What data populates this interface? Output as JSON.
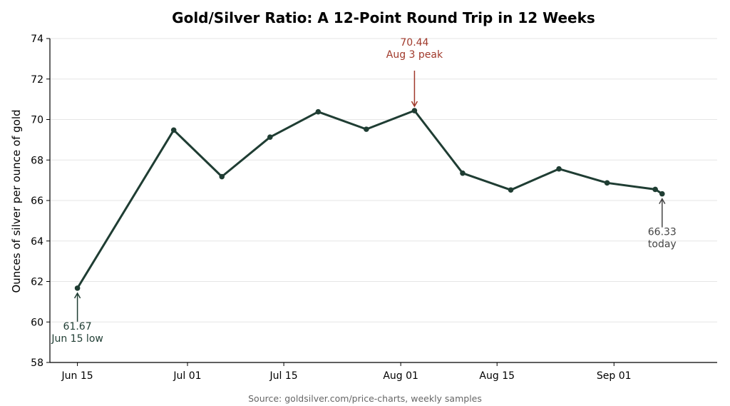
{
  "chart_data": {
    "type": "line",
    "title": "Gold/Silver Ratio: A 12-Point Round Trip in 12 Weeks",
    "xlabel": "",
    "ylabel": "Ounces of silver per ounce of gold",
    "source": "Source: goldsilver.com/price-charts, weekly samples",
    "ylim": [
      58,
      74
    ],
    "yticks": [
      58,
      60,
      62,
      64,
      66,
      68,
      70,
      72,
      74
    ],
    "xlim": [
      "2025-06-11",
      "2025-09-16"
    ],
    "xticks": [
      {
        "date": "2025-06-15",
        "label": "Jun 15"
      },
      {
        "date": "2025-07-01",
        "label": "Jul 01"
      },
      {
        "date": "2025-07-15",
        "label": "Jul 15"
      },
      {
        "date": "2025-08-01",
        "label": "Aug 01"
      },
      {
        "date": "2025-08-15",
        "label": "Aug 15"
      },
      {
        "date": "2025-09-01",
        "label": "Sep 01"
      }
    ],
    "grid": "horizontal",
    "line_color": "#1f3d33",
    "series": [
      {
        "name": "",
        "points": [
          {
            "x": "2025-06-15",
            "y": 61.67
          },
          {
            "x": "2025-06-29",
            "y": 69.48
          },
          {
            "x": "2025-07-06",
            "y": 67.18
          },
          {
            "x": "2025-07-13",
            "y": 69.13
          },
          {
            "x": "2025-07-20",
            "y": 70.38
          },
          {
            "x": "2025-07-27",
            "y": 69.52
          },
          {
            "x": "2025-08-03",
            "y": 70.44
          },
          {
            "x": "2025-08-10",
            "y": 67.35
          },
          {
            "x": "2025-08-17",
            "y": 66.52
          },
          {
            "x": "2025-08-24",
            "y": 67.56
          },
          {
            "x": "2025-08-31",
            "y": 66.87
          },
          {
            "x": "2025-09-07",
            "y": 66.55
          },
          {
            "x": "2025-09-08",
            "y": 66.33
          }
        ]
      }
    ],
    "annotations": [
      {
        "x": "2025-06-15",
        "y": 61.67,
        "value": "61.67",
        "label": "Jun 15 low",
        "color": "#1f3d33",
        "position": "below"
      },
      {
        "x": "2025-08-03",
        "y": 70.44,
        "value": "70.44",
        "label": "Aug 3 peak",
        "color": "#a0392b",
        "position": "above"
      },
      {
        "x": "2025-09-08",
        "y": 66.33,
        "value": "66.33",
        "label": "today",
        "color": "#444444",
        "position": "below"
      }
    ]
  }
}
